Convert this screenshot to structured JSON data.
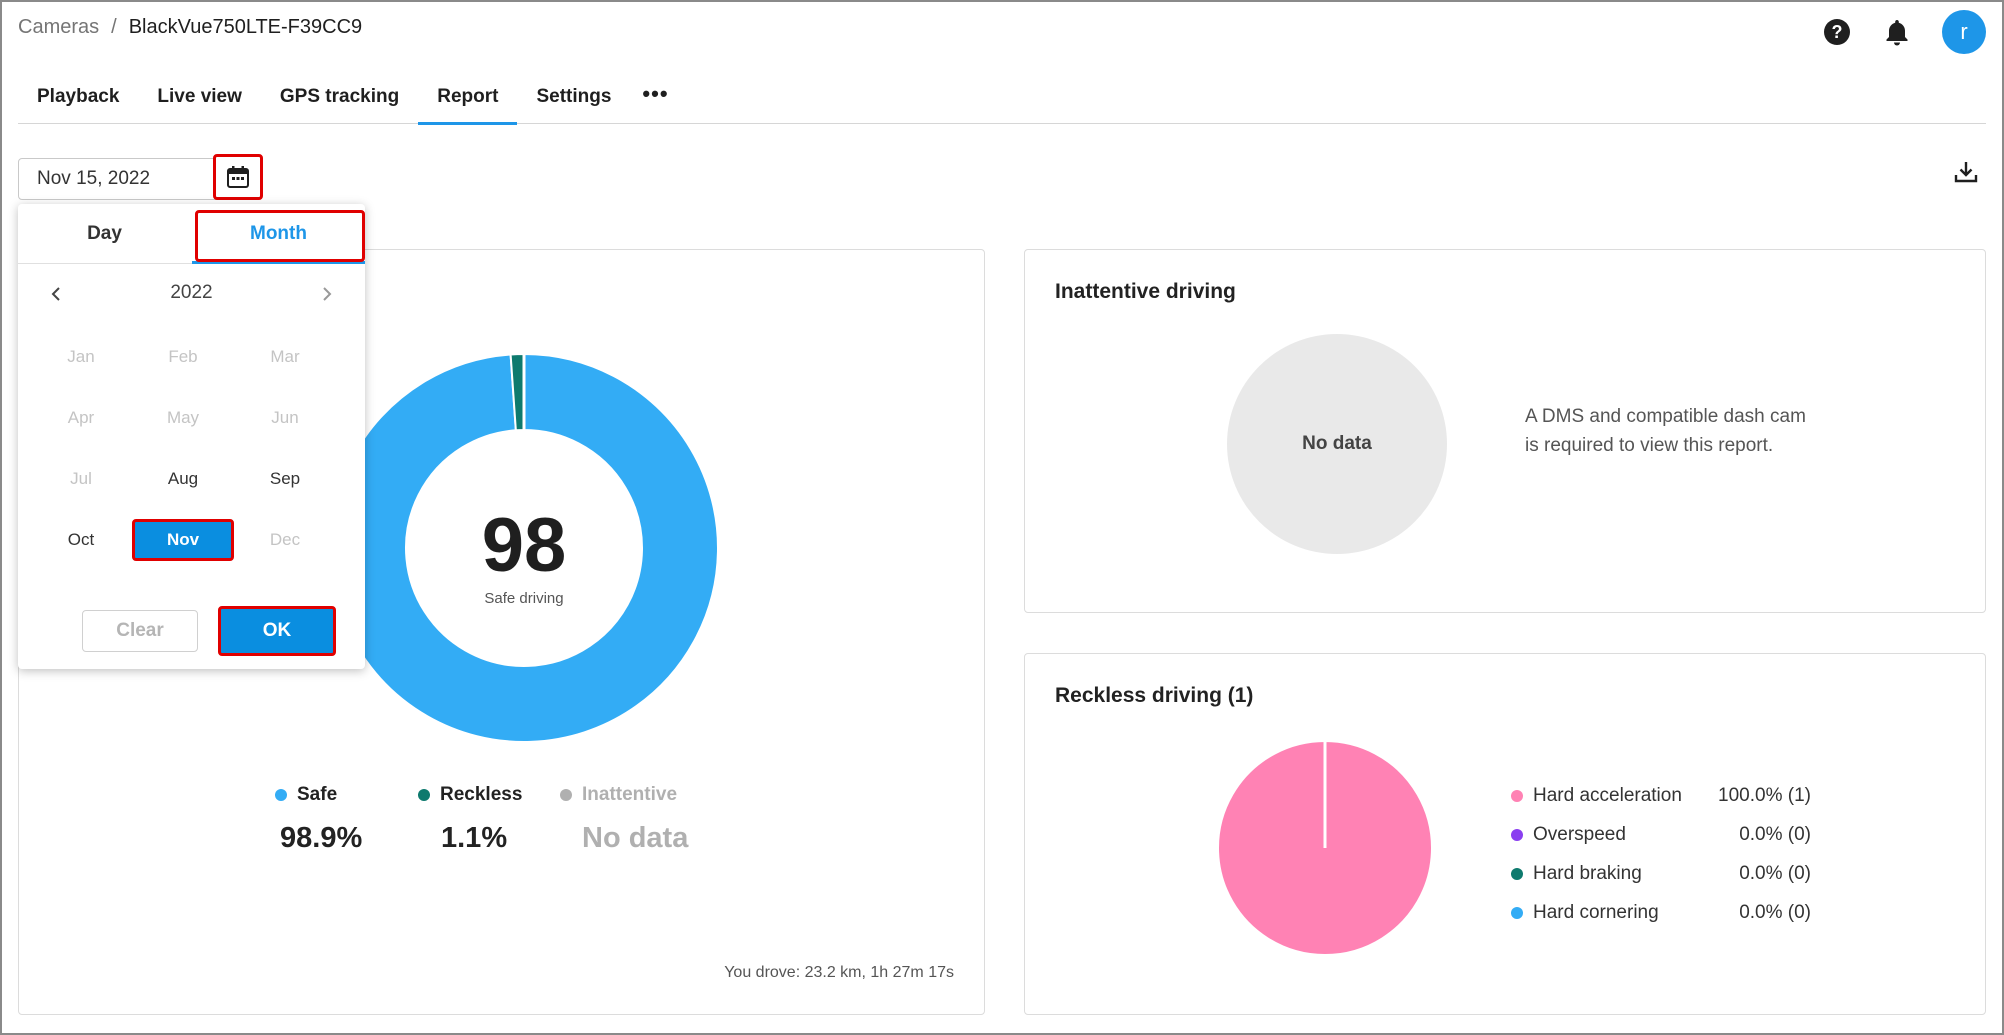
{
  "breadcrumb": {
    "root": "Cameras",
    "separator": "/",
    "current": "BlackVue750LTE-F39CC9"
  },
  "header": {
    "avatar_letter": "r",
    "icons": [
      "help-icon",
      "bell-icon"
    ]
  },
  "tabs": [
    {
      "label": "Playback"
    },
    {
      "label": "Live view"
    },
    {
      "label": "GPS tracking"
    },
    {
      "label": "Report",
      "active": true
    },
    {
      "label": "Settings"
    },
    {
      "label": "•••"
    }
  ],
  "date_picker": {
    "value": "Nov 15, 2022"
  },
  "popup": {
    "day_tab": "Day",
    "month_tab": "Month",
    "year": "2022",
    "months": [
      {
        "label": "Jan",
        "state": "disabled"
      },
      {
        "label": "Feb",
        "state": "disabled"
      },
      {
        "label": "Mar",
        "state": "disabled"
      },
      {
        "label": "Apr",
        "state": "disabled"
      },
      {
        "label": "May",
        "state": "disabled"
      },
      {
        "label": "Jun",
        "state": "disabled"
      },
      {
        "label": "Jul",
        "state": "disabled"
      },
      {
        "label": "Aug",
        "state": "enabled"
      },
      {
        "label": "Sep",
        "state": "enabled"
      },
      {
        "label": "Oct",
        "state": "enabled"
      },
      {
        "label": "Nov",
        "state": "selected"
      },
      {
        "label": "Dec",
        "state": "disabled"
      }
    ],
    "clear_label": "Clear",
    "ok_label": "OK"
  },
  "safety": {
    "score": "98",
    "score_label": "Safe driving",
    "legend": [
      {
        "label": "Safe",
        "value": "98.9%",
        "color": "#33acf5"
      },
      {
        "label": "Reckless",
        "value": "1.1%",
        "color": "#0e7a6e"
      },
      {
        "label": "Inattentive",
        "value": "No data",
        "color": "#b0b0b0"
      }
    ],
    "drove": "You drove: 23.2 km, 1h 27m 17s"
  },
  "chart_data": [
    {
      "type": "pie",
      "categories": [
        "Safe",
        "Reckless",
        "Inattentive"
      ],
      "values": [
        98.9,
        1.1,
        0
      ],
      "colors": [
        "#33acf5",
        "#0e7a6e",
        "#b0b0b0"
      ],
      "title": "98",
      "subtitle": "Safe driving"
    },
    {
      "type": "pie",
      "categories": [
        "Hard acceleration",
        "Overspeed",
        "Hard braking",
        "Hard cornering"
      ],
      "values": [
        100.0,
        0.0,
        0.0,
        0.0
      ],
      "counts": [
        1,
        0,
        0,
        0
      ],
      "colors": [
        "#ff82b4",
        "#8a3ff0",
        "#0e7a6e",
        "#33acf5"
      ],
      "title": "Reckless driving (1)"
    }
  ],
  "inattentive": {
    "title": "Inattentive driving",
    "no_data": "No data",
    "message": "A DMS and compatible dash cam is required to view this report."
  },
  "reckless": {
    "title": "Reckless driving (1)",
    "items": [
      {
        "label": "Hard acceleration",
        "value": "100.0% (1)",
        "color": "#ff82b4"
      },
      {
        "label": "Overspeed",
        "value": "0.0% (0)",
        "color": "#8a3ff0"
      },
      {
        "label": "Hard braking",
        "value": "0.0% (0)",
        "color": "#0e7a6e"
      },
      {
        "label": "Hard cornering",
        "value": "0.0% (0)",
        "color": "#33acf5"
      }
    ]
  }
}
